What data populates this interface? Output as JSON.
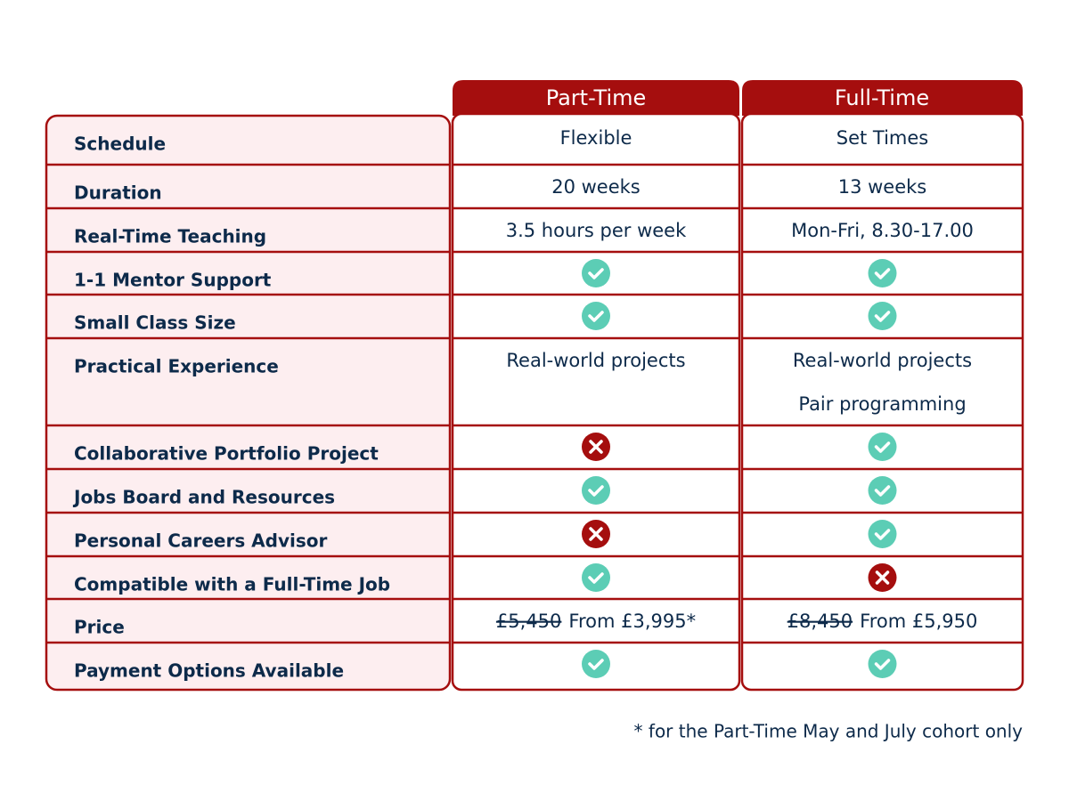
{
  "table": {
    "columns": [
      "Part-Time",
      "Full-Time"
    ],
    "rows": [
      {
        "label": "Schedule",
        "cells": [
          "Flexible",
          "Set Times"
        ]
      },
      {
        "label": "Duration",
        "cells": [
          "20 weeks",
          "13 weeks"
        ]
      },
      {
        "label": "Real-Time Teaching",
        "cells": [
          "3.5 hours per week",
          "Mon-Fri, 8.30-17.00"
        ]
      },
      {
        "label": "1-1 Mentor Support",
        "cells": [
          true,
          true
        ]
      },
      {
        "label": "Small Class Size",
        "cells": [
          true,
          true
        ]
      },
      {
        "label": "Practical Experience",
        "cells": [
          [
            "Real-world projects"
          ],
          [
            "Real-world projects",
            "Pair programming"
          ]
        ]
      },
      {
        "label": "Collaborative Portfolio Project",
        "cells": [
          false,
          true
        ]
      },
      {
        "label": "Jobs Board and Resources",
        "cells": [
          true,
          true
        ]
      },
      {
        "label": "Personal Careers Advisor",
        "cells": [
          false,
          true
        ]
      },
      {
        "label": "Compatible with a Full-Time Job",
        "cells": [
          true,
          false
        ]
      },
      {
        "label": "Price",
        "cells": [
          {
            "old": "£5,450",
            "new": "From £3,995*"
          },
          {
            "old": "£8,450",
            "new": "From £5,950"
          }
        ]
      },
      {
        "label": "Payment Options Available",
        "cells": [
          true,
          true
        ]
      }
    ],
    "footnote": "* for the Part-Time May and July cohort only"
  }
}
